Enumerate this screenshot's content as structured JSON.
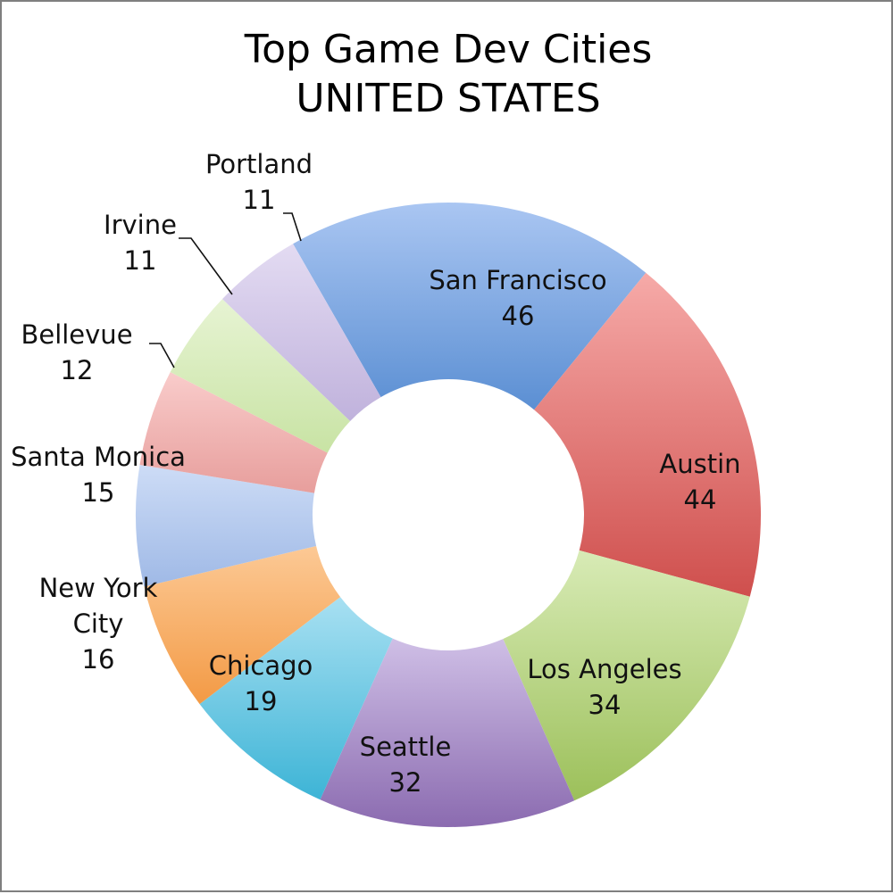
{
  "chart_data": {
    "type": "pie",
    "donut": true,
    "title_lines": [
      "Top Game Dev Cities",
      "UNITED STATES"
    ],
    "slices": [
      {
        "label_lines": [
          "San Francisco"
        ],
        "value": 46,
        "color": "#5b8fd3",
        "light": "#aac6f2"
      },
      {
        "label_lines": [
          "Austin"
        ],
        "value": 44,
        "color": "#cf4f4d",
        "light": "#f6aaa8"
      },
      {
        "label_lines": [
          "Los Angeles"
        ],
        "value": 34,
        "color": "#9cc05a",
        "light": "#d8ebb6"
      },
      {
        "label_lines": [
          "Seattle"
        ],
        "value": 32,
        "color": "#8b6bb0",
        "light": "#cfbfe6"
      },
      {
        "label_lines": [
          "Chicago"
        ],
        "value": 19,
        "color": "#3db4d6",
        "light": "#a8e0f2"
      },
      {
        "label_lines": [
          "New York",
          "City"
        ],
        "value": 16,
        "color": "#f39a45",
        "light": "#fcc995"
      },
      {
        "label_lines": [
          "Santa Monica"
        ],
        "value": 15,
        "color": "#9fb9e6",
        "light": "#cddcf6"
      },
      {
        "label_lines": [
          "Bellevue"
        ],
        "value": 12,
        "color": "#e79e9c",
        "light": "#f9cccb"
      },
      {
        "label_lines": [
          "Irvine"
        ],
        "value": 11,
        "color": "#c8e3a4",
        "light": "#e7f4d3"
      },
      {
        "label_lines": [
          "Portland"
        ],
        "value": 11,
        "color": "#c0b2dc",
        "light": "#e3dbf2"
      }
    ]
  }
}
